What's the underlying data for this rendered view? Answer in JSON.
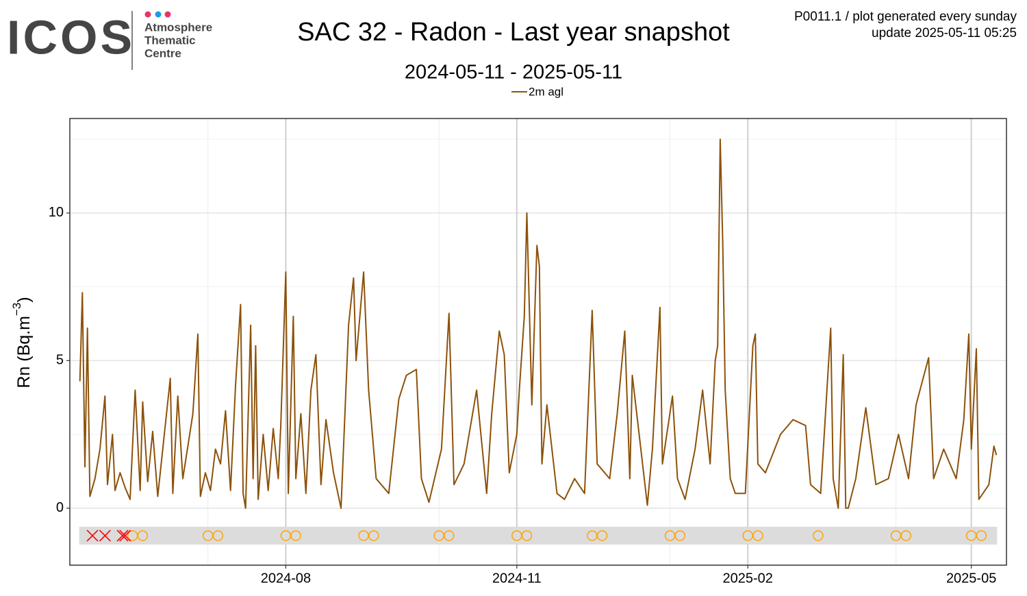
{
  "header": {
    "logo": "ICOS",
    "logo_lines": [
      "Atmosphere",
      "Thematic",
      "Centre"
    ],
    "info": [
      "P0011.1 / plot generated every sunday",
      "update  2025-05-11 05:25"
    ]
  },
  "chart_data": {
    "type": "line",
    "title": "SAC 32 - Radon - Last year snapshot",
    "subtitle": "2024-05-11 - 2025-05-11",
    "ylabel": [
      "Rn (Bq.m",
      "−3",
      ")"
    ],
    "x": [
      "2024-05-11",
      "2024-05-12",
      "2024-05-13",
      "2024-05-14",
      "2024-05-15",
      "2024-05-17",
      "2024-05-19",
      "2024-05-21",
      "2024-05-22",
      "2024-05-24",
      "2024-05-25",
      "2024-05-27",
      "2024-05-29",
      "2024-05-31",
      "2024-06-02",
      "2024-06-04",
      "2024-06-05",
      "2024-06-07",
      "2024-06-09",
      "2024-06-11",
      "2024-06-13",
      "2024-06-16",
      "2024-06-17",
      "2024-06-19",
      "2024-06-21",
      "2024-06-23",
      "2024-06-25",
      "2024-06-27",
      "2024-06-28",
      "2024-06-30",
      "2024-07-02",
      "2024-07-04",
      "2024-07-06",
      "2024-07-08",
      "2024-07-10",
      "2024-07-12",
      "2024-07-14",
      "2024-07-15",
      "2024-07-16",
      "2024-07-18",
      "2024-07-19",
      "2024-07-20",
      "2024-07-21",
      "2024-07-23",
      "2024-07-25",
      "2024-07-27",
      "2024-07-29",
      "2024-07-30",
      "2024-08-01",
      "2024-08-02",
      "2024-08-04",
      "2024-08-05",
      "2024-08-07",
      "2024-08-09",
      "2024-08-11",
      "2024-08-13",
      "2024-08-15",
      "2024-08-17",
      "2024-08-20",
      "2024-08-23",
      "2024-08-26",
      "2024-08-28",
      "2024-08-29",
      "2024-09-01",
      "2024-09-03",
      "2024-09-06",
      "2024-09-11",
      "2024-09-15",
      "2024-09-18",
      "2024-09-22",
      "2024-09-24",
      "2024-09-27",
      "2024-10-02",
      "2024-10-05",
      "2024-10-07",
      "2024-10-11",
      "2024-10-16",
      "2024-10-20",
      "2024-10-22",
      "2024-10-25",
      "2024-10-27",
      "2024-10-29",
      "2024-11-01",
      "2024-11-02",
      "2024-11-04",
      "2024-11-05",
      "2024-11-07",
      "2024-11-09",
      "2024-11-10",
      "2024-11-11",
      "2024-11-13",
      "2024-11-17",
      "2024-11-20",
      "2024-11-24",
      "2024-11-28",
      "2024-12-01",
      "2024-12-03",
      "2024-12-08",
      "2024-12-11",
      "2024-12-14",
      "2024-12-16",
      "2024-12-17",
      "2024-12-23",
      "2024-12-25",
      "2024-12-28",
      "2024-12-29",
      "2025-01-02",
      "2025-01-04",
      "2025-01-07",
      "2025-01-11",
      "2025-01-14",
      "2025-01-17",
      "2025-01-19",
      "2025-01-20",
      "2025-01-21",
      "2025-01-22",
      "2025-01-23",
      "2025-01-25",
      "2025-01-27",
      "2025-01-31",
      "2025-02-03",
      "2025-02-04",
      "2025-02-05",
      "2025-02-08",
      "2025-02-14",
      "2025-02-19",
      "2025-02-24",
      "2025-02-26",
      "2025-03-02",
      "2025-03-06",
      "2025-03-07",
      "2025-03-09",
      "2025-03-11",
      "2025-03-12",
      "2025-03-13",
      "2025-03-16",
      "2025-03-20",
      "2025-03-24",
      "2025-03-29",
      "2025-04-02",
      "2025-04-06",
      "2025-04-09",
      "2025-04-14",
      "2025-04-16",
      "2025-04-20",
      "2025-04-25",
      "2025-04-28",
      "2025-04-30",
      "2025-05-01",
      "2025-05-03",
      "2025-05-04",
      "2025-05-08",
      "2025-05-10",
      "2025-05-11"
    ],
    "series": [
      {
        "name": "2m agl",
        "color": "#8c510a",
        "values": [
          4.3,
          7.3,
          1.4,
          6.1,
          0.4,
          1.0,
          2.0,
          3.8,
          0.8,
          2.5,
          0.6,
          1.2,
          0.7,
          0.3,
          4.0,
          0.6,
          3.6,
          0.9,
          2.6,
          0.4,
          2.0,
          4.4,
          0.5,
          3.8,
          1.0,
          2.1,
          3.2,
          5.9,
          0.4,
          1.2,
          0.6,
          2.0,
          1.5,
          3.3,
          0.6,
          4.2,
          6.9,
          0.5,
          0.0,
          6.2,
          1.0,
          5.5,
          0.3,
          2.5,
          0.6,
          2.7,
          1.0,
          2.8,
          8.0,
          0.5,
          6.5,
          1.0,
          3.2,
          0.5,
          4.0,
          5.2,
          0.8,
          3.0,
          1.2,
          0.0,
          6.2,
          7.8,
          5.0,
          8.0,
          4.0,
          1.0,
          0.5,
          3.7,
          4.5,
          4.7,
          1.0,
          0.2,
          2.0,
          6.6,
          0.8,
          1.5,
          4.0,
          0.5,
          3.2,
          6.0,
          5.2,
          1.2,
          2.5,
          4.0,
          6.5,
          10.0,
          3.5,
          8.9,
          8.2,
          1.5,
          3.5,
          0.5,
          0.3,
          1.0,
          0.5,
          6.7,
          1.5,
          1.0,
          3.2,
          6.0,
          1.0,
          4.5,
          0.1,
          2.0,
          6.8,
          1.5,
          3.8,
          1.0,
          0.3,
          2.0,
          4.0,
          1.5,
          5.0,
          5.5,
          12.5,
          9.0,
          4.0,
          1.0,
          0.5,
          0.5,
          5.5,
          5.9,
          1.5,
          1.2,
          2.5,
          3.0,
          2.8,
          0.8,
          0.5,
          6.1,
          1.0,
          0.0,
          5.2,
          0.0,
          0.0,
          1.0,
          3.4,
          0.8,
          1.0,
          2.5,
          1.0,
          3.5,
          5.1,
          1.0,
          2.0,
          1.0,
          3.0,
          5.9,
          2.0,
          5.4,
          0.3,
          0.8,
          2.1,
          1.8
        ]
      }
    ],
    "xlim": [
      "2024-05-07",
      "2025-05-15"
    ],
    "xticks": [
      {
        "value": "2024-08-01",
        "label": "2024-08"
      },
      {
        "value": "2024-11-01",
        "label": "2024-11"
      },
      {
        "value": "2025-02-01",
        "label": "2025-02"
      },
      {
        "value": "2025-05-01",
        "label": "2025-05"
      }
    ],
    "xminorticks": [
      "2024-07-01",
      "2024-10-01",
      "2025-01-01",
      "2025-04-01"
    ],
    "ylim": [
      -1.93,
      13.2
    ],
    "yticks": [
      0,
      5,
      10
    ],
    "yminorticks": [
      2.5,
      7.5,
      12.5
    ],
    "grid": true,
    "flags": {
      "y": -0.93,
      "cross_color": "#ff0000",
      "circle_color": "#ffa500",
      "crosses": [
        "2024-05-16",
        "2024-05-21",
        "2024-05-28",
        "2024-05-29"
      ],
      "circles": [
        "2024-06-01",
        "2024-06-05",
        "2024-07-01",
        "2024-07-05",
        "2024-08-01",
        "2024-08-05",
        "2024-09-01",
        "2024-09-05",
        "2024-10-01",
        "2024-10-05",
        "2024-11-01",
        "2024-11-05",
        "2024-12-01",
        "2024-12-05",
        "2025-01-01",
        "2025-01-05",
        "2025-02-01",
        "2025-02-05",
        "2025-03-01",
        "2025-04-01",
        "2025-04-05",
        "2025-05-01",
        "2025-05-05"
      ]
    }
  }
}
